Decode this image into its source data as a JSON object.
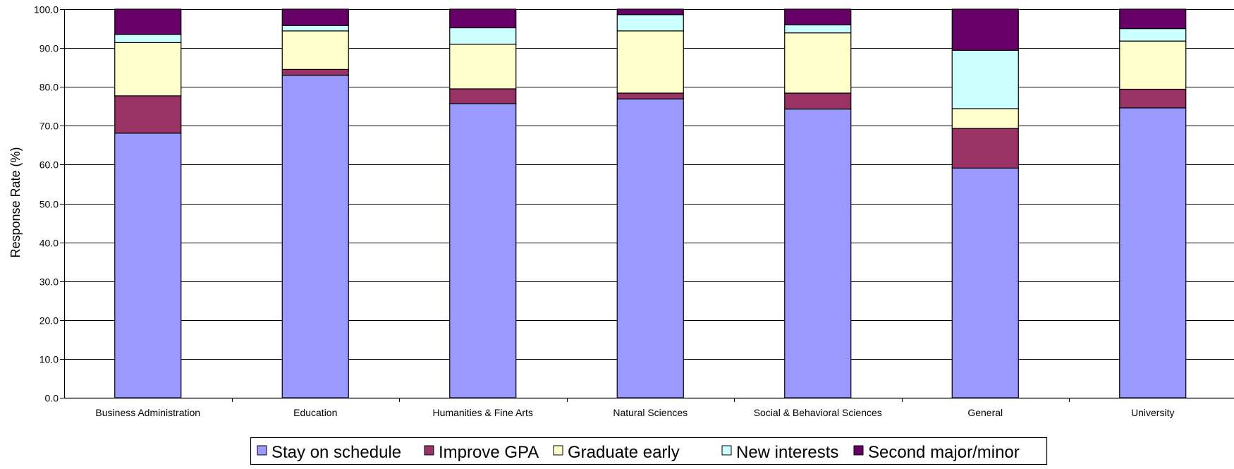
{
  "chart_data": {
    "type": "bar",
    "stacked": true,
    "title": "",
    "xlabel": "",
    "ylabel": "Response Rate (%)",
    "ylim": [
      0,
      100
    ],
    "ytick_step": 10,
    "grid": true,
    "legend_position": "bottom",
    "categories": [
      "Business Administration",
      "Education",
      "Humanities & Fine Arts",
      "Natural Sciences",
      "Social & Behavioral Sciences",
      "General",
      "University"
    ],
    "series": [
      {
        "name": "Stay on schedule",
        "color": "#9999ff",
        "values": [
          68.1,
          83.0,
          75.7,
          76.9,
          74.3,
          59.1,
          74.6
        ]
      },
      {
        "name": "Improve GPA",
        "color": "#993366",
        "values": [
          9.6,
          1.5,
          3.8,
          1.5,
          4.1,
          10.2,
          4.8
        ]
      },
      {
        "name": "Graduate early",
        "color": "#ffffcc",
        "values": [
          13.7,
          9.9,
          11.5,
          16.0,
          15.5,
          5.1,
          12.4
        ]
      },
      {
        "name": "New interests",
        "color": "#ccffff",
        "values": [
          2.1,
          1.4,
          4.2,
          4.2,
          2.1,
          15.0,
          3.2
        ]
      },
      {
        "name": "Second major/minor",
        "color": "#660066",
        "values": [
          6.5,
          4.2,
          4.8,
          1.4,
          4.0,
          10.6,
          5.0
        ]
      }
    ]
  }
}
